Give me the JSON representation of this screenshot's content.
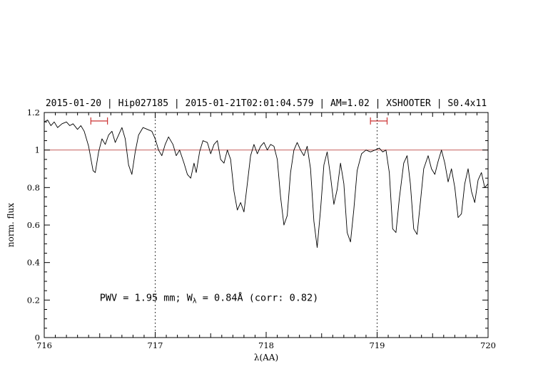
{
  "colors": {
    "title_text": "#0000cc",
    "annotation_text": "#0000cc",
    "reference_line": "#c4615c",
    "marker": "#cc3333",
    "spectrum": "#000000",
    "background": "#ffffff"
  },
  "chart_data": {
    "type": "line",
    "title": "2015-01-20 | Hip027185 | 2015-01-21T02:01:04.579 | AM=1.02 | XSHOOTER | S0.4x11",
    "xlabel": "λ(AA)",
    "ylabel": "norm. flux",
    "xlim": [
      716,
      720
    ],
    "ylim": [
      0,
      1.2
    ],
    "grid": false,
    "xticks": {
      "major": [
        716,
        717,
        718,
        719,
        720
      ],
      "labels": [
        "716",
        "717",
        "718",
        "719",
        "720"
      ],
      "minor_step": 0.1
    },
    "yticks": {
      "major": [
        0,
        0.2,
        0.4,
        0.6,
        0.8,
        1,
        1.2
      ],
      "labels": [
        "0",
        "0.2",
        "0.4",
        "0.6",
        "0.8",
        "1",
        "1.2"
      ],
      "minor_step": 0.05
    },
    "reference_line": {
      "y": 1.0
    },
    "vlines": [
      {
        "x": 717
      },
      {
        "x": 719
      }
    ],
    "markers": [
      {
        "x1": 716.42,
        "x2": 716.57,
        "y": 1.155
      },
      {
        "x1": 718.94,
        "x2": 719.09,
        "y": 1.155
      }
    ],
    "annotation": {
      "parts": [
        "PWV = 1.95 mm; W",
        "λ",
        " = 0.84Å (corr: 0.82)"
      ],
      "x": 716.5,
      "y": 0.195
    },
    "series": [
      {
        "name": "spectrum",
        "points": [
          [
            716.0,
            1.15
          ],
          [
            716.03,
            1.16
          ],
          [
            716.06,
            1.13
          ],
          [
            716.09,
            1.15
          ],
          [
            716.12,
            1.12
          ],
          [
            716.16,
            1.14
          ],
          [
            716.2,
            1.15
          ],
          [
            716.23,
            1.13
          ],
          [
            716.26,
            1.14
          ],
          [
            716.3,
            1.11
          ],
          [
            716.33,
            1.13
          ],
          [
            716.36,
            1.1
          ],
          [
            716.4,
            1.02
          ],
          [
            716.44,
            0.89
          ],
          [
            716.46,
            0.88
          ],
          [
            716.49,
            0.99
          ],
          [
            716.52,
            1.06
          ],
          [
            716.55,
            1.03
          ],
          [
            716.58,
            1.08
          ],
          [
            716.61,
            1.1
          ],
          [
            716.64,
            1.04
          ],
          [
            716.67,
            1.08
          ],
          [
            716.7,
            1.12
          ],
          [
            716.73,
            1.06
          ],
          [
            716.76,
            0.92
          ],
          [
            716.79,
            0.87
          ],
          [
            716.82,
            0.99
          ],
          [
            716.85,
            1.08
          ],
          [
            716.89,
            1.12
          ],
          [
            716.93,
            1.11
          ],
          [
            716.97,
            1.1
          ],
          [
            717.0,
            1.06
          ],
          [
            717.03,
            1.0
          ],
          [
            717.06,
            0.97
          ],
          [
            717.09,
            1.03
          ],
          [
            717.12,
            1.07
          ],
          [
            717.16,
            1.03
          ],
          [
            717.19,
            0.97
          ],
          [
            717.22,
            1.0
          ],
          [
            717.26,
            0.93
          ],
          [
            717.29,
            0.87
          ],
          [
            717.32,
            0.85
          ],
          [
            717.35,
            0.93
          ],
          [
            717.37,
            0.88
          ],
          [
            717.4,
            0.99
          ],
          [
            717.43,
            1.05
          ],
          [
            717.47,
            1.04
          ],
          [
            717.5,
            0.98
          ],
          [
            717.53,
            1.03
          ],
          [
            717.56,
            1.05
          ],
          [
            717.59,
            0.95
          ],
          [
            717.62,
            0.93
          ],
          [
            717.65,
            1.0
          ],
          [
            717.68,
            0.95
          ],
          [
            717.71,
            0.78
          ],
          [
            717.74,
            0.68
          ],
          [
            717.77,
            0.72
          ],
          [
            717.8,
            0.67
          ],
          [
            717.83,
            0.82
          ],
          [
            717.86,
            0.97
          ],
          [
            717.89,
            1.03
          ],
          [
            717.92,
            0.98
          ],
          [
            717.95,
            1.02
          ],
          [
            717.98,
            1.04
          ],
          [
            718.01,
            1.0
          ],
          [
            718.04,
            1.03
          ],
          [
            718.07,
            1.02
          ],
          [
            718.1,
            0.95
          ],
          [
            718.13,
            0.75
          ],
          [
            718.16,
            0.6
          ],
          [
            718.19,
            0.65
          ],
          [
            718.22,
            0.88
          ],
          [
            718.25,
            1.0
          ],
          [
            718.28,
            1.04
          ],
          [
            718.31,
            1.0
          ],
          [
            718.34,
            0.97
          ],
          [
            718.37,
            1.02
          ],
          [
            718.4,
            0.9
          ],
          [
            718.43,
            0.62
          ],
          [
            718.46,
            0.48
          ],
          [
            718.49,
            0.68
          ],
          [
            718.52,
            0.92
          ],
          [
            718.55,
            0.99
          ],
          [
            718.58,
            0.86
          ],
          [
            718.61,
            0.71
          ],
          [
            718.64,
            0.79
          ],
          [
            718.67,
            0.93
          ],
          [
            718.7,
            0.82
          ],
          [
            718.73,
            0.56
          ],
          [
            718.76,
            0.51
          ],
          [
            718.79,
            0.68
          ],
          [
            718.82,
            0.89
          ],
          [
            718.86,
            0.98
          ],
          [
            718.9,
            1.0
          ],
          [
            718.94,
            0.99
          ],
          [
            718.98,
            1.0
          ],
          [
            719.02,
            1.01
          ],
          [
            719.05,
            0.99
          ],
          [
            719.08,
            1.0
          ],
          [
            719.11,
            0.88
          ],
          [
            719.14,
            0.58
          ],
          [
            719.17,
            0.56
          ],
          [
            719.2,
            0.74
          ],
          [
            719.24,
            0.93
          ],
          [
            719.27,
            0.97
          ],
          [
            719.3,
            0.82
          ],
          [
            719.33,
            0.58
          ],
          [
            719.36,
            0.55
          ],
          [
            719.39,
            0.72
          ],
          [
            719.42,
            0.9
          ],
          [
            719.46,
            0.97
          ],
          [
            719.49,
            0.9
          ],
          [
            719.52,
            0.87
          ],
          [
            719.55,
            0.94
          ],
          [
            719.58,
            1.0
          ],
          [
            719.61,
            0.93
          ],
          [
            719.64,
            0.83
          ],
          [
            719.67,
            0.9
          ],
          [
            719.7,
            0.8
          ],
          [
            719.73,
            0.64
          ],
          [
            719.76,
            0.66
          ],
          [
            719.79,
            0.82
          ],
          [
            719.82,
            0.9
          ],
          [
            719.85,
            0.78
          ],
          [
            719.88,
            0.72
          ],
          [
            719.91,
            0.84
          ],
          [
            719.94,
            0.88
          ],
          [
            719.97,
            0.8
          ],
          [
            720.0,
            0.82
          ]
        ]
      }
    ]
  }
}
